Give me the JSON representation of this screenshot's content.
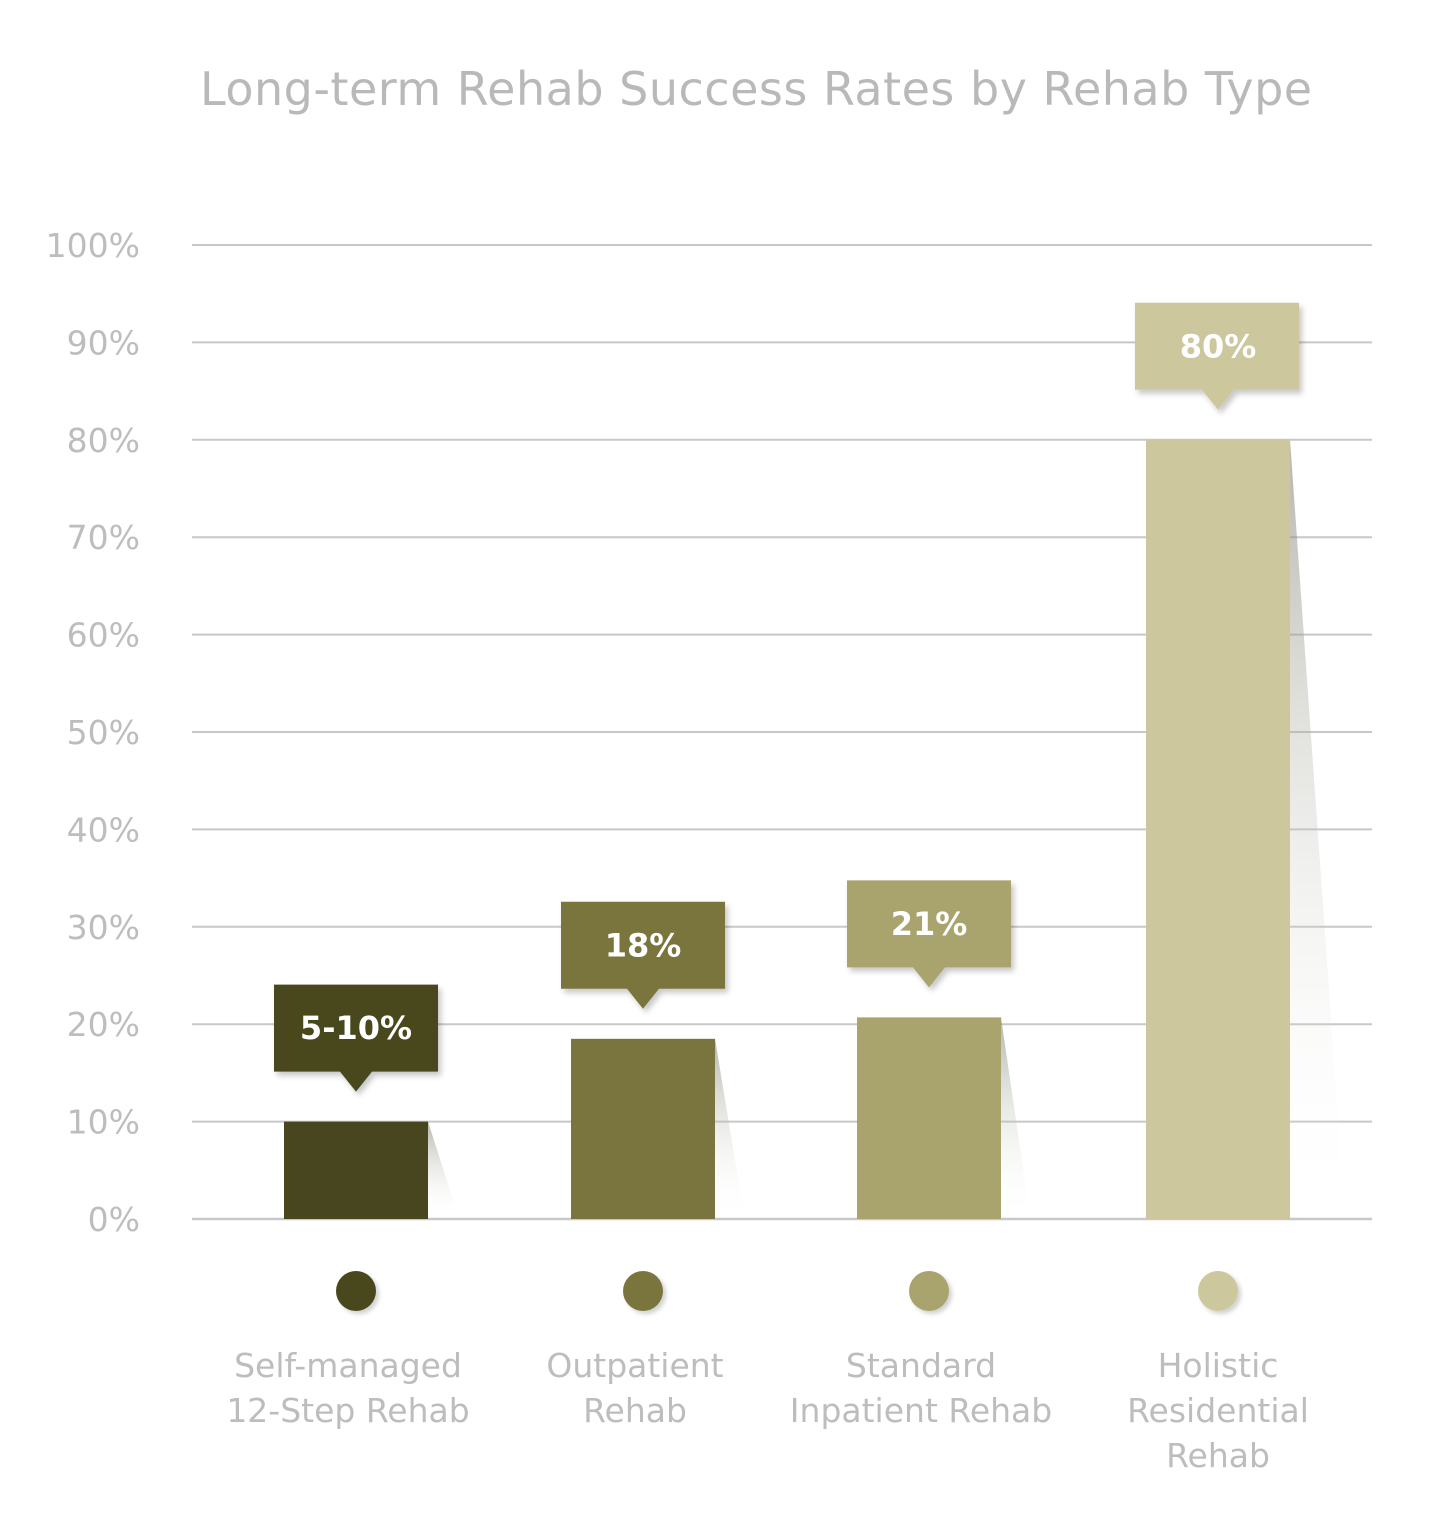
{
  "chart_data": {
    "type": "bar",
    "title": "Long-term Rehab Success Rates by Rehab Type",
    "xlabel": "",
    "ylabel": "",
    "ylim": [
      0,
      100
    ],
    "y_ticks": [
      0,
      10,
      20,
      30,
      40,
      50,
      60,
      70,
      80,
      90,
      100
    ],
    "y_tick_labels": [
      "0%",
      "10%",
      "20%",
      "30%",
      "40%",
      "50%",
      "60%",
      "70%",
      "80%",
      "90%",
      "100%"
    ],
    "grid": true,
    "categories": [
      "Self-managed 12-Step Rehab",
      "Outpatient Rehab",
      "Standard Inpatient Rehab",
      "Holistic Residential Rehab"
    ],
    "category_label_lines": [
      [
        "Self-managed",
        "12-Step Rehab"
      ],
      [
        "Outpatient",
        "Rehab"
      ],
      [
        "Standard",
        "Inpatient Rehab"
      ],
      [
        "Holistic",
        "Residential",
        "Rehab"
      ]
    ],
    "values": [
      10,
      18.5,
      20.7,
      80
    ],
    "data_labels": [
      "5-10%",
      "18%",
      "21%",
      "80%"
    ],
    "colors": [
      "#48461f",
      "#7a753e",
      "#a9a36d",
      "#ccc79d"
    ],
    "gridline_color": "#c8c8c8",
    "label_color": "#bdbdbd"
  }
}
